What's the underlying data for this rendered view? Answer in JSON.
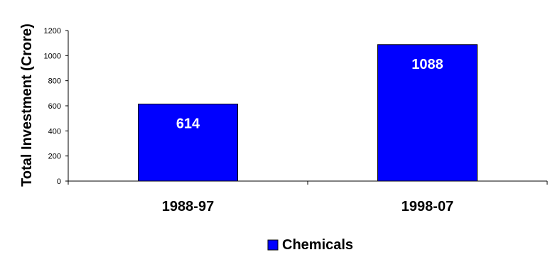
{
  "chart_data": {
    "type": "bar",
    "title": "",
    "xlabel": "",
    "ylabel": "Total Investment (Crore)",
    "categories": [
      "1988-97",
      "1998-07"
    ],
    "series": [
      {
        "name": "Chemicals",
        "values": [
          614,
          1088
        ],
        "data_labels": [
          "614",
          "1088"
        ],
        "color": "#0000ff"
      }
    ],
    "ylim": [
      0,
      1200
    ],
    "yticks": [
      "0",
      "200",
      "400",
      "600",
      "800",
      "1000",
      "1200"
    ],
    "grid": false,
    "legend": "bottom-center"
  }
}
